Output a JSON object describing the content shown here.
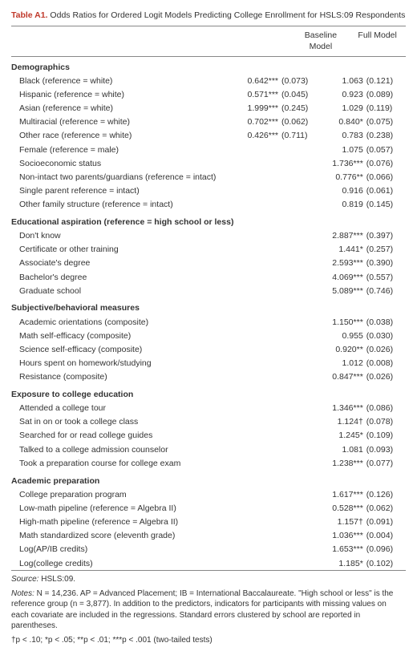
{
  "title_label": "Table A1.",
  "title_text": " Odds Ratios for Ordered Logit Models Predicting College Enrollment for HSLS:09 Respondents",
  "columns": {
    "baseline": "Baseline Model",
    "full": "Full Model"
  },
  "sections": [
    {
      "name": "Demographics",
      "rows": [
        {
          "label": "Black (reference = white)",
          "bv": "0.642***",
          "bse": "(0.073)",
          "fv": "1.063",
          "fse": "(0.121)"
        },
        {
          "label": "Hispanic (reference = white)",
          "bv": "0.571***",
          "bse": "(0.045)",
          "fv": "0.923",
          "fse": "(0.089)"
        },
        {
          "label": "Asian (reference = white)",
          "bv": "1.999***",
          "bse": "(0.245)",
          "fv": "1.029",
          "fse": "(0.119)"
        },
        {
          "label": "Multiracial (reference = white)",
          "bv": "0.702***",
          "bse": "(0.062)",
          "fv": "0.840*",
          "fse": "(0.075)"
        },
        {
          "label": "Other race (reference = white)",
          "bv": "0.426***",
          "bse": "(0.711)",
          "fv": "0.783",
          "fse": "(0.238)"
        },
        {
          "label": "Female (reference = male)",
          "bv": "",
          "bse": "",
          "fv": "1.075",
          "fse": "(0.057)"
        },
        {
          "label": "Socioeconomic status",
          "bv": "",
          "bse": "",
          "fv": "1.736***",
          "fse": "(0.076)"
        },
        {
          "label": "Non-intact two parents/guardians (reference = intact)",
          "bv": "",
          "bse": "",
          "fv": "0.776**",
          "fse": "(0.066)"
        },
        {
          "label": "Single parent reference = intact)",
          "bv": "",
          "bse": "",
          "fv": "0.916",
          "fse": "(0.061)"
        },
        {
          "label": "Other family structure (reference = intact)",
          "bv": "",
          "bse": "",
          "fv": "0.819",
          "fse": "(0.145)"
        }
      ]
    },
    {
      "name": "Educational aspiration (reference = high school or less)",
      "rows": [
        {
          "label": "Don't know",
          "bv": "",
          "bse": "",
          "fv": "2.887***",
          "fse": "(0.397)"
        },
        {
          "label": "Certificate or other training",
          "bv": "",
          "bse": "",
          "fv": "1.441*",
          "fse": "(0.257)"
        },
        {
          "label": "Associate's degree",
          "bv": "",
          "bse": "",
          "fv": "2.593***",
          "fse": "(0.390)"
        },
        {
          "label": "Bachelor's degree",
          "bv": "",
          "bse": "",
          "fv": "4.069***",
          "fse": "(0.557)"
        },
        {
          "label": "Graduate school",
          "bv": "",
          "bse": "",
          "fv": "5.089***",
          "fse": "(0.746)"
        }
      ]
    },
    {
      "name": "Subjective/behavioral measures",
      "rows": [
        {
          "label": "Academic orientations (composite)",
          "bv": "",
          "bse": "",
          "fv": "1.150***",
          "fse": "(0.038)"
        },
        {
          "label": "Math self-efficacy (composite)",
          "bv": "",
          "bse": "",
          "fv": "0.955",
          "fse": "(0.030)"
        },
        {
          "label": "Science self-efficacy (composite)",
          "bv": "",
          "bse": "",
          "fv": "0.920**",
          "fse": "(0.026)"
        },
        {
          "label": "Hours spent on homework/studying",
          "bv": "",
          "bse": "",
          "fv": "1.012",
          "fse": "(0.008)"
        },
        {
          "label": "Resistance (composite)",
          "bv": "",
          "bse": "",
          "fv": "0.847***",
          "fse": "(0.026)"
        }
      ]
    },
    {
      "name": "Exposure to college education",
      "rows": [
        {
          "label": "Attended a college tour",
          "bv": "",
          "bse": "",
          "fv": "1.346***",
          "fse": "(0.086)"
        },
        {
          "label": "Sat in on or took a college class",
          "bv": "",
          "bse": "",
          "fv": "1.124†",
          "fse": "(0.078)"
        },
        {
          "label": "Searched for or read college guides",
          "bv": "",
          "bse": "",
          "fv": "1.245*",
          "fse": "(0.109)"
        },
        {
          "label": "Talked to a college admission counselor",
          "bv": "",
          "bse": "",
          "fv": "1.081",
          "fse": "(0.093)"
        },
        {
          "label": "Took a preparation course for college exam",
          "bv": "",
          "bse": "",
          "fv": "1.238***",
          "fse": "(0.077)"
        }
      ]
    },
    {
      "name": "Academic preparation",
      "rows": [
        {
          "label": "College preparation program",
          "bv": "",
          "bse": "",
          "fv": "1.617***",
          "fse": "(0.126)"
        },
        {
          "label": "Low-math pipeline (reference = Algebra II)",
          "bv": "",
          "bse": "",
          "fv": "0.528***",
          "fse": "(0.062)"
        },
        {
          "label": "High-math pipeline (reference = Algebra II)",
          "bv": "",
          "bse": "",
          "fv": "1.157†",
          "fse": "(0.091)"
        },
        {
          "label": "Math standardized score (eleventh grade)",
          "bv": "",
          "bse": "",
          "fv": "1.036***",
          "fse": "(0.004)"
        },
        {
          "label": "Log(AP/IB credits)",
          "bv": "",
          "bse": "",
          "fv": "1.653***",
          "fse": "(0.096)"
        },
        {
          "label": "Log(college credits)",
          "bv": "",
          "bse": "",
          "fv": "1.185*",
          "fse": "(0.102)"
        }
      ]
    }
  ],
  "source_label": "Source:",
  "source_text": " HSLS:09.",
  "notes_label": "Notes:",
  "notes_text": " N = 14,236. AP = Advanced Placement; IB = International Baccalaureate. \"High school or less\" is the reference group (n = 3,877). In addition to the predictors, indicators for participants with missing values on each covariate are included in the regressions. Standard errors clustered by school are reported in parentheses.",
  "sig_text": "†p < .10; *p < .05; **p < .01; ***p < .001  (two-tailed tests)"
}
